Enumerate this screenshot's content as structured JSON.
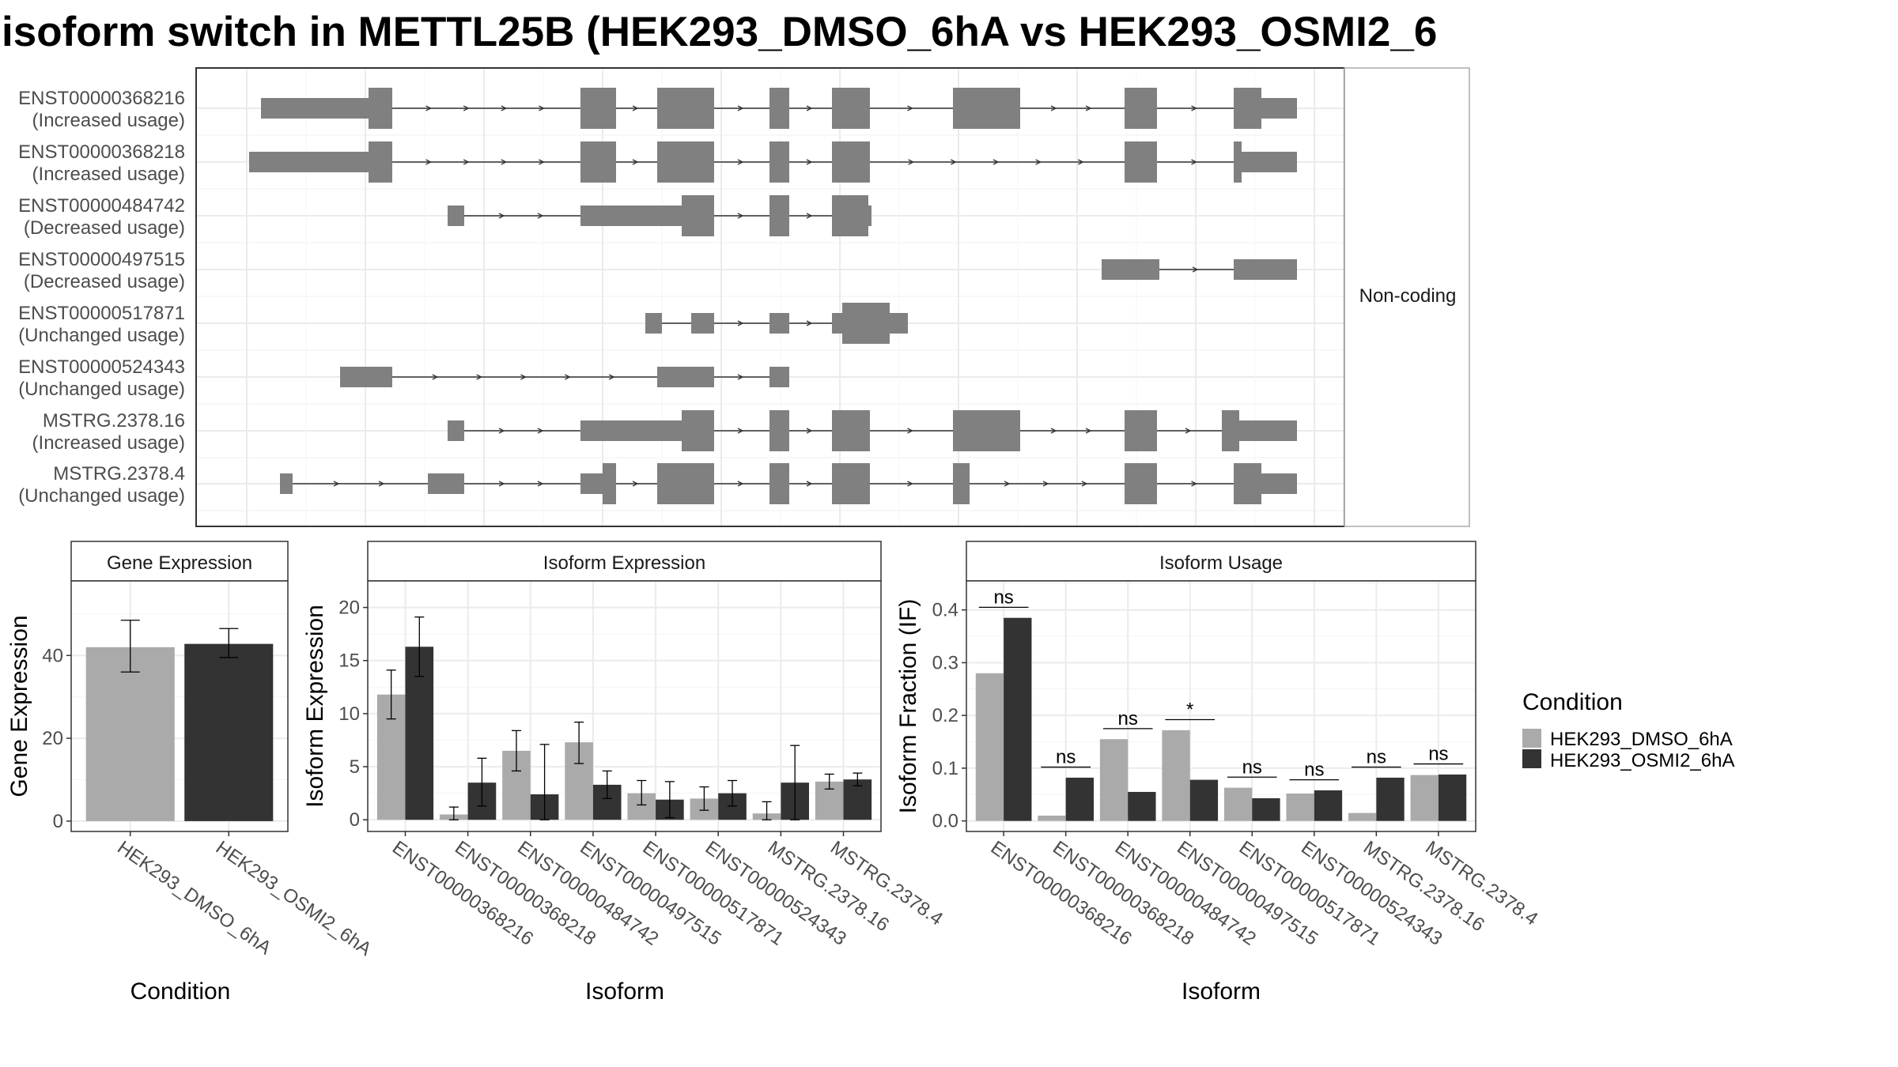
{
  "title": "isoform switch in METTL25B (HEK293_DMSO_6hA vs HEK293_OSMI2_6",
  "colors": {
    "exon": "#808080",
    "dmso": "#aaaaaa",
    "osmi": "#333333",
    "panel_border": "#333333",
    "strip_border": "#aaaaaa",
    "grid": "#ebebeb"
  },
  "structure_panel": {
    "strip_label": "Non-coding",
    "isoforms": [
      {
        "id": "ENST00000368216",
        "usage": "(Increased usage)"
      },
      {
        "id": "ENST00000368218",
        "usage": "(Increased usage)"
      },
      {
        "id": "ENST00000484742",
        "usage": "(Decreased usage)"
      },
      {
        "id": "ENST00000497515",
        "usage": "(Decreased usage)"
      },
      {
        "id": "ENST00000517871",
        "usage": "(Unchanged usage)"
      },
      {
        "id": "ENST00000524343",
        "usage": "(Unchanged usage)"
      },
      {
        "id": "MSTRG.2378.16",
        "usage": "(Increased usage)"
      },
      {
        "id": "MSTRG.2378.4",
        "usage": "(Unchanged usage)"
      }
    ]
  },
  "legend": {
    "title": "Condition",
    "items": [
      "HEK293_DMSO_6hA",
      "HEK293_OSMI2_6hA"
    ]
  },
  "chart_data": [
    {
      "type": "bar",
      "strip": "Gene Expression",
      "xlabel": "Condition",
      "ylabel": "Gene Expression",
      "categories": [
        "HEK293_DMSO_6hA",
        "HEK293_OSMI2_6hA"
      ],
      "values": [
        42,
        42.8
      ],
      "errors": [
        [
          36,
          48.5
        ],
        [
          39.5,
          46.5
        ]
      ],
      "ylim": [
        -2.5,
        58
      ],
      "yticks": [
        0,
        20,
        40
      ],
      "grid": true
    },
    {
      "type": "bar",
      "strip": "Isoform Expression",
      "xlabel": "Isoform",
      "ylabel": "Isoform Expression",
      "categories": [
        "ENST00000368216",
        "ENST00000368218",
        "ENST00000484742",
        "ENST00000497515",
        "ENST00000517871",
        "ENST00000524343",
        "MSTRG.2378.16",
        "MSTRG.2378.4"
      ],
      "series": [
        {
          "name": "HEK293_DMSO_6hA",
          "values": [
            11.8,
            0.5,
            6.5,
            7.3,
            2.5,
            2.0,
            0.6,
            3.6
          ],
          "errors": [
            [
              9.5,
              14.1
            ],
            [
              0,
              1.2
            ],
            [
              4.6,
              8.4
            ],
            [
              5.3,
              9.2
            ],
            [
              1.4,
              3.7
            ],
            [
              0.9,
              3.1
            ],
            [
              0,
              1.7
            ],
            [
              2.9,
              4.3
            ]
          ]
        },
        {
          "name": "HEK293_OSMI2_6hA",
          "values": [
            16.3,
            3.5,
            2.4,
            3.3,
            1.9,
            2.5,
            3.5,
            3.8
          ],
          "errors": [
            [
              13.5,
              19.1
            ],
            [
              1.3,
              5.8
            ],
            [
              0,
              7.1
            ],
            [
              2.0,
              4.6
            ],
            [
              0.2,
              3.6
            ],
            [
              1.3,
              3.7
            ],
            [
              0,
              7.0
            ],
            [
              3.2,
              4.4
            ]
          ]
        }
      ],
      "ylim": [
        -1.1,
        22.5
      ],
      "yticks": [
        0,
        5,
        10,
        15,
        20
      ],
      "grid": true
    },
    {
      "type": "bar",
      "strip": "Isoform Usage",
      "xlabel": "Isoform",
      "ylabel": "Isoform Fraction (IF)",
      "categories": [
        "ENST00000368216",
        "ENST00000368218",
        "ENST00000484742",
        "ENST00000497515",
        "ENST00000517871",
        "ENST00000524343",
        "MSTRG.2378.16",
        "MSTRG.2378.4"
      ],
      "series": [
        {
          "name": "HEK293_DMSO_6hA",
          "values": [
            0.28,
            0.01,
            0.155,
            0.172,
            0.063,
            0.052,
            0.015,
            0.087
          ]
        },
        {
          "name": "HEK293_OSMI2_6hA",
          "values": [
            0.385,
            0.082,
            0.055,
            0.078,
            0.043,
            0.058,
            0.082,
            0.088
          ]
        }
      ],
      "significance": [
        "ns",
        "ns",
        "ns",
        "*",
        "ns",
        "ns",
        "ns",
        "ns"
      ],
      "ylim": [
        -0.02,
        0.455
      ],
      "yticks": [
        0.0,
        0.1,
        0.2,
        0.3,
        0.4
      ],
      "yticklabels": [
        "0.0",
        "0.1",
        "0.2",
        "0.3",
        "0.4"
      ],
      "grid": true
    }
  ]
}
